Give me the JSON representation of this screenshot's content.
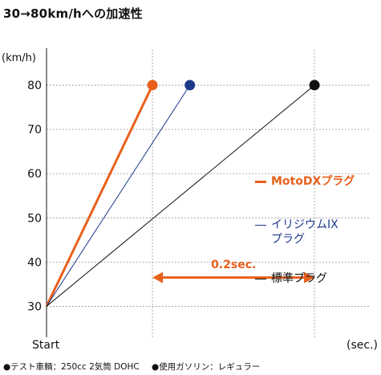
{
  "title": "30→80km/hへの加速性",
  "footnotes": [
    "●テスト車輌：250cc 2気筒 DOHC",
    "●使用ガソリン：レギュラー"
  ],
  "chart_data": {
    "type": "line",
    "title": "30→80km/hへの加速性",
    "ylabel": "(km/h)",
    "xlabel": "(sec.)",
    "x_start_label": "Start",
    "ylim": [
      23,
      88
    ],
    "yticks": [
      30,
      40,
      50,
      60,
      70,
      80
    ],
    "x_unit_sec": "0.2",
    "xlim": [
      0,
      0.52
    ],
    "grid": true,
    "series": [
      {
        "name": "MotoDXプラグ",
        "color": "#e8601c",
        "width": 3,
        "x": [
          0,
          0.17
        ],
        "y": [
          30,
          80
        ]
      },
      {
        "name": "イリジウムIXプラグ",
        "color": "#1d3a8a",
        "width": 1,
        "x": [
          0,
          0.23
        ],
        "y": [
          30,
          80
        ]
      },
      {
        "name": "標準プラグ",
        "color": "#111111",
        "width": 1,
        "x": [
          0,
          0.43
        ],
        "y": [
          30,
          80
        ]
      }
    ],
    "annotation": {
      "text": "0.2sec.",
      "x_from": 0.17,
      "x_to": 0.43,
      "y": 36.5,
      "color": "#e8601c"
    },
    "vertical_gridlines_x": [
      0.17,
      0.43
    ]
  },
  "legend": {
    "moto": "MotoDXプラグ",
    "ix_line1": "イリジウムIX",
    "ix_line2": "プラグ",
    "std": "標準プラグ"
  }
}
